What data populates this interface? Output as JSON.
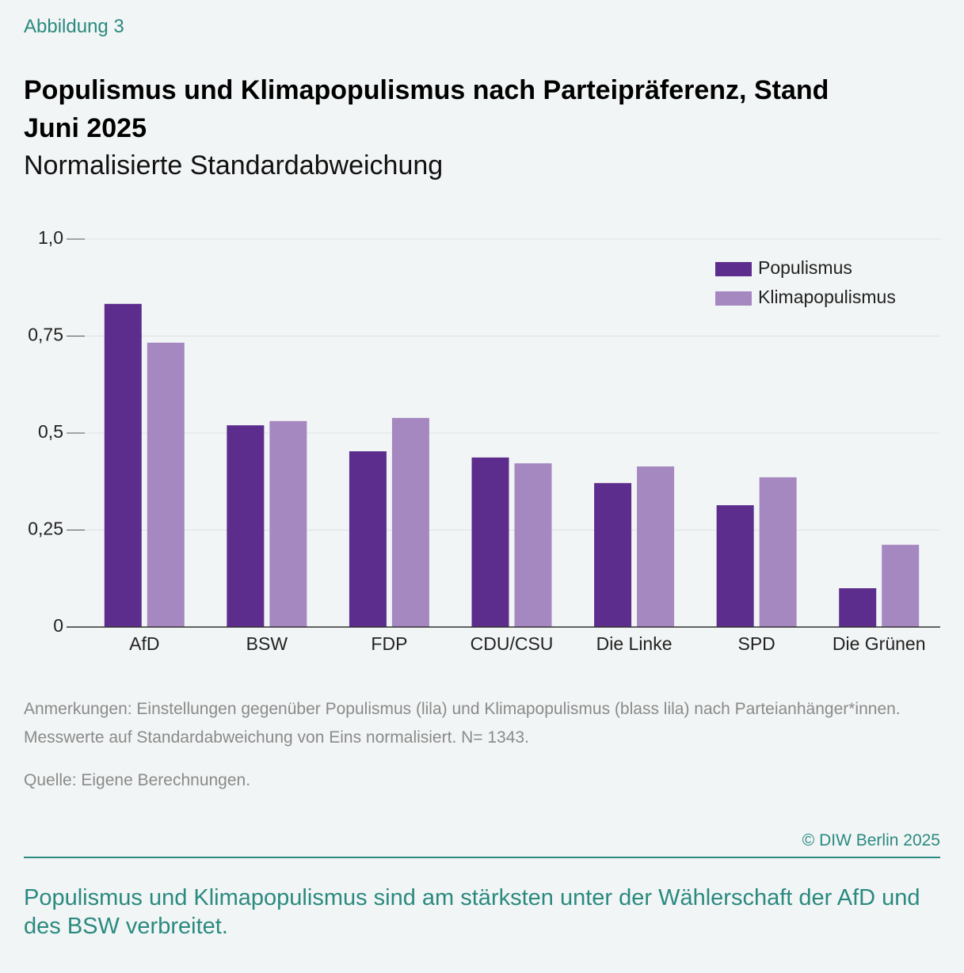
{
  "chart_data": {
    "type": "bar",
    "figure_label": "Abbildung 3",
    "title": "Populismus und Klimapopulismus nach Parteipräferenz, Stand Juni 2025",
    "subtitle": "Normalisierte Standardabweichung",
    "categories": [
      "AfD",
      "BSW",
      "FDP",
      "CDU/CSU",
      "Die Linke",
      "SPD",
      "Die Grünen"
    ],
    "series": [
      {
        "name": "Populismus",
        "color": "#5c2d8c",
        "values": [
          0.833,
          0.52,
          0.453,
          0.437,
          0.371,
          0.314,
          0.1
        ]
      },
      {
        "name": "Klimapopulismus",
        "color": "#a688c0",
        "values": [
          0.733,
          0.531,
          0.539,
          0.422,
          0.414,
          0.386,
          0.212
        ]
      }
    ],
    "ylim": [
      0,
      1
    ],
    "yticks": [
      0,
      {
        "value": 0.25,
        "label": "0,25"
      },
      {
        "value": 0.5,
        "label": "0,5"
      },
      {
        "value": 0.75,
        "label": "0,75"
      },
      {
        "value": 1,
        "label": "1,0"
      }
    ],
    "grid": true,
    "legend": "top-right",
    "notes": "Anmerkungen: Einstellungen gegenüber Populismus (lila) und Klimapopulismus (blass lila) nach Parteianhänger*innen. Messwerte auf Standardabweichung von Eins normalisiert. N= 1343.",
    "source": "Quelle: Eigene Berechnungen.",
    "copyright": "© DIW Berlin 2025",
    "caption": "Populismus und Klimapopulismus sind am stärksten unter der Wählerschaft der AfD und des BSW verbreitet."
  }
}
